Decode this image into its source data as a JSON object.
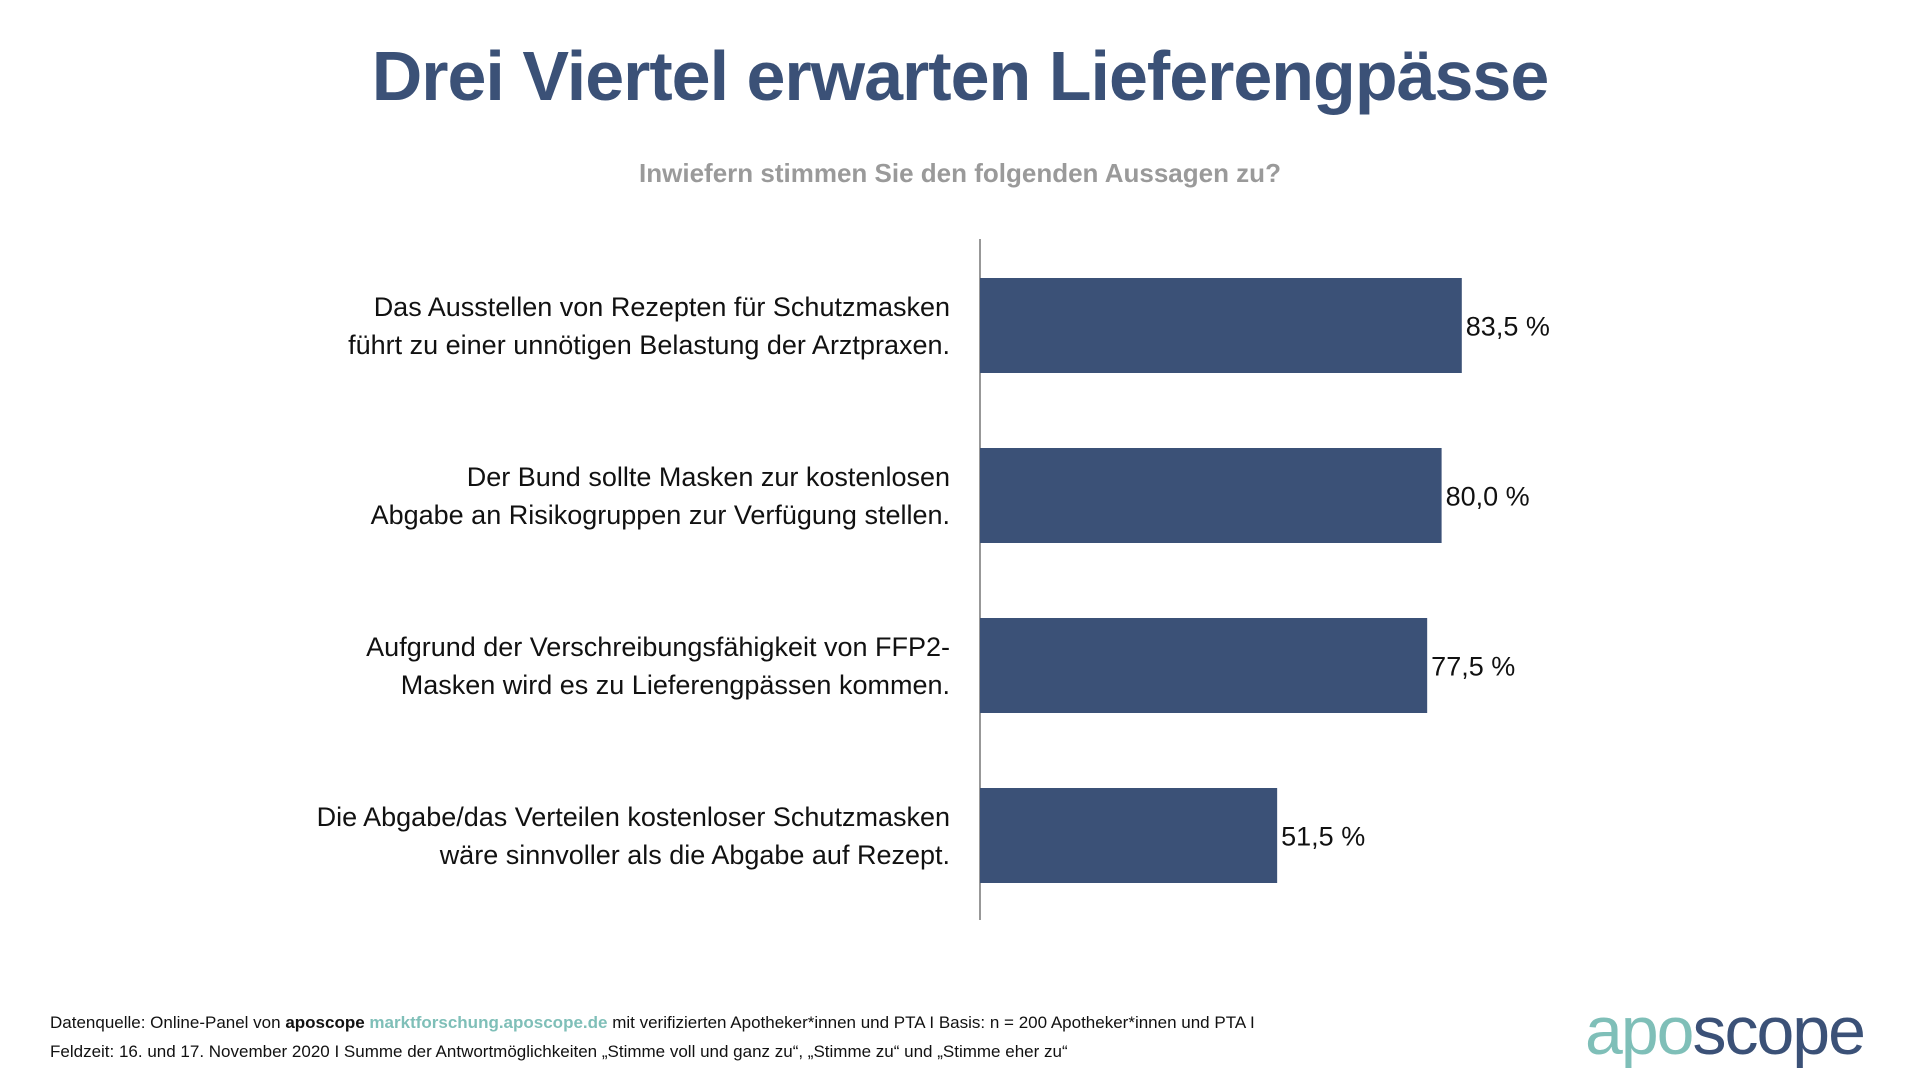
{
  "title": "Drei Viertel erwarten Lieferengpässe",
  "subtitle": "Inwiefern stimmen Sie den folgenden Aussagen zu?",
  "chart_data": {
    "type": "bar",
    "orientation": "horizontal",
    "categories": [
      [
        "Das Ausstellen von Rezepten für Schutzmasken",
        "führt zu einer unnötigen Belastung der Arztpraxen."
      ],
      [
        "Der Bund sollte Masken zur kostenlosen",
        "Abgabe an Risikogruppen zur Verfügung stellen."
      ],
      [
        "Aufgrund der Verschreibungsfähigkeit von FFP2-",
        "Masken wird es zu Lieferengpässen kommen."
      ],
      [
        "Die Abgabe/das Verteilen kostenloser Schutzmasken",
        "wäre sinnvoller als die Abgabe auf Rezept."
      ]
    ],
    "values": [
      83.5,
      80.0,
      77.5,
      51.5
    ],
    "data_labels": [
      "83,5 %",
      "80,0 %",
      "77,5 %",
      "51,5 %"
    ],
    "xlim": [
      0,
      100
    ],
    "grid": false,
    "bar_color": "#3b5177"
  },
  "footer": {
    "line1_prefix": "Datenquelle: Online-Panel von ",
    "brand": "aposcope",
    "link": "marktforschung.aposcope.de",
    "line1_suffix": " mit verifizierten Apotheker*innen und PTA I Basis: n = 200 Apotheker*innen und PTA I",
    "line2": "Feldzeit: 16. und 17. November 2020 I Summe der Antwortmöglichkeiten „Stimme voll und ganz zu“, „Stimme zu“ und „Stimme eher zu“"
  },
  "logo": {
    "part1": "apo",
    "part2": "scope",
    "color1": "#7fbfb8",
    "color2": "#3b5177"
  }
}
